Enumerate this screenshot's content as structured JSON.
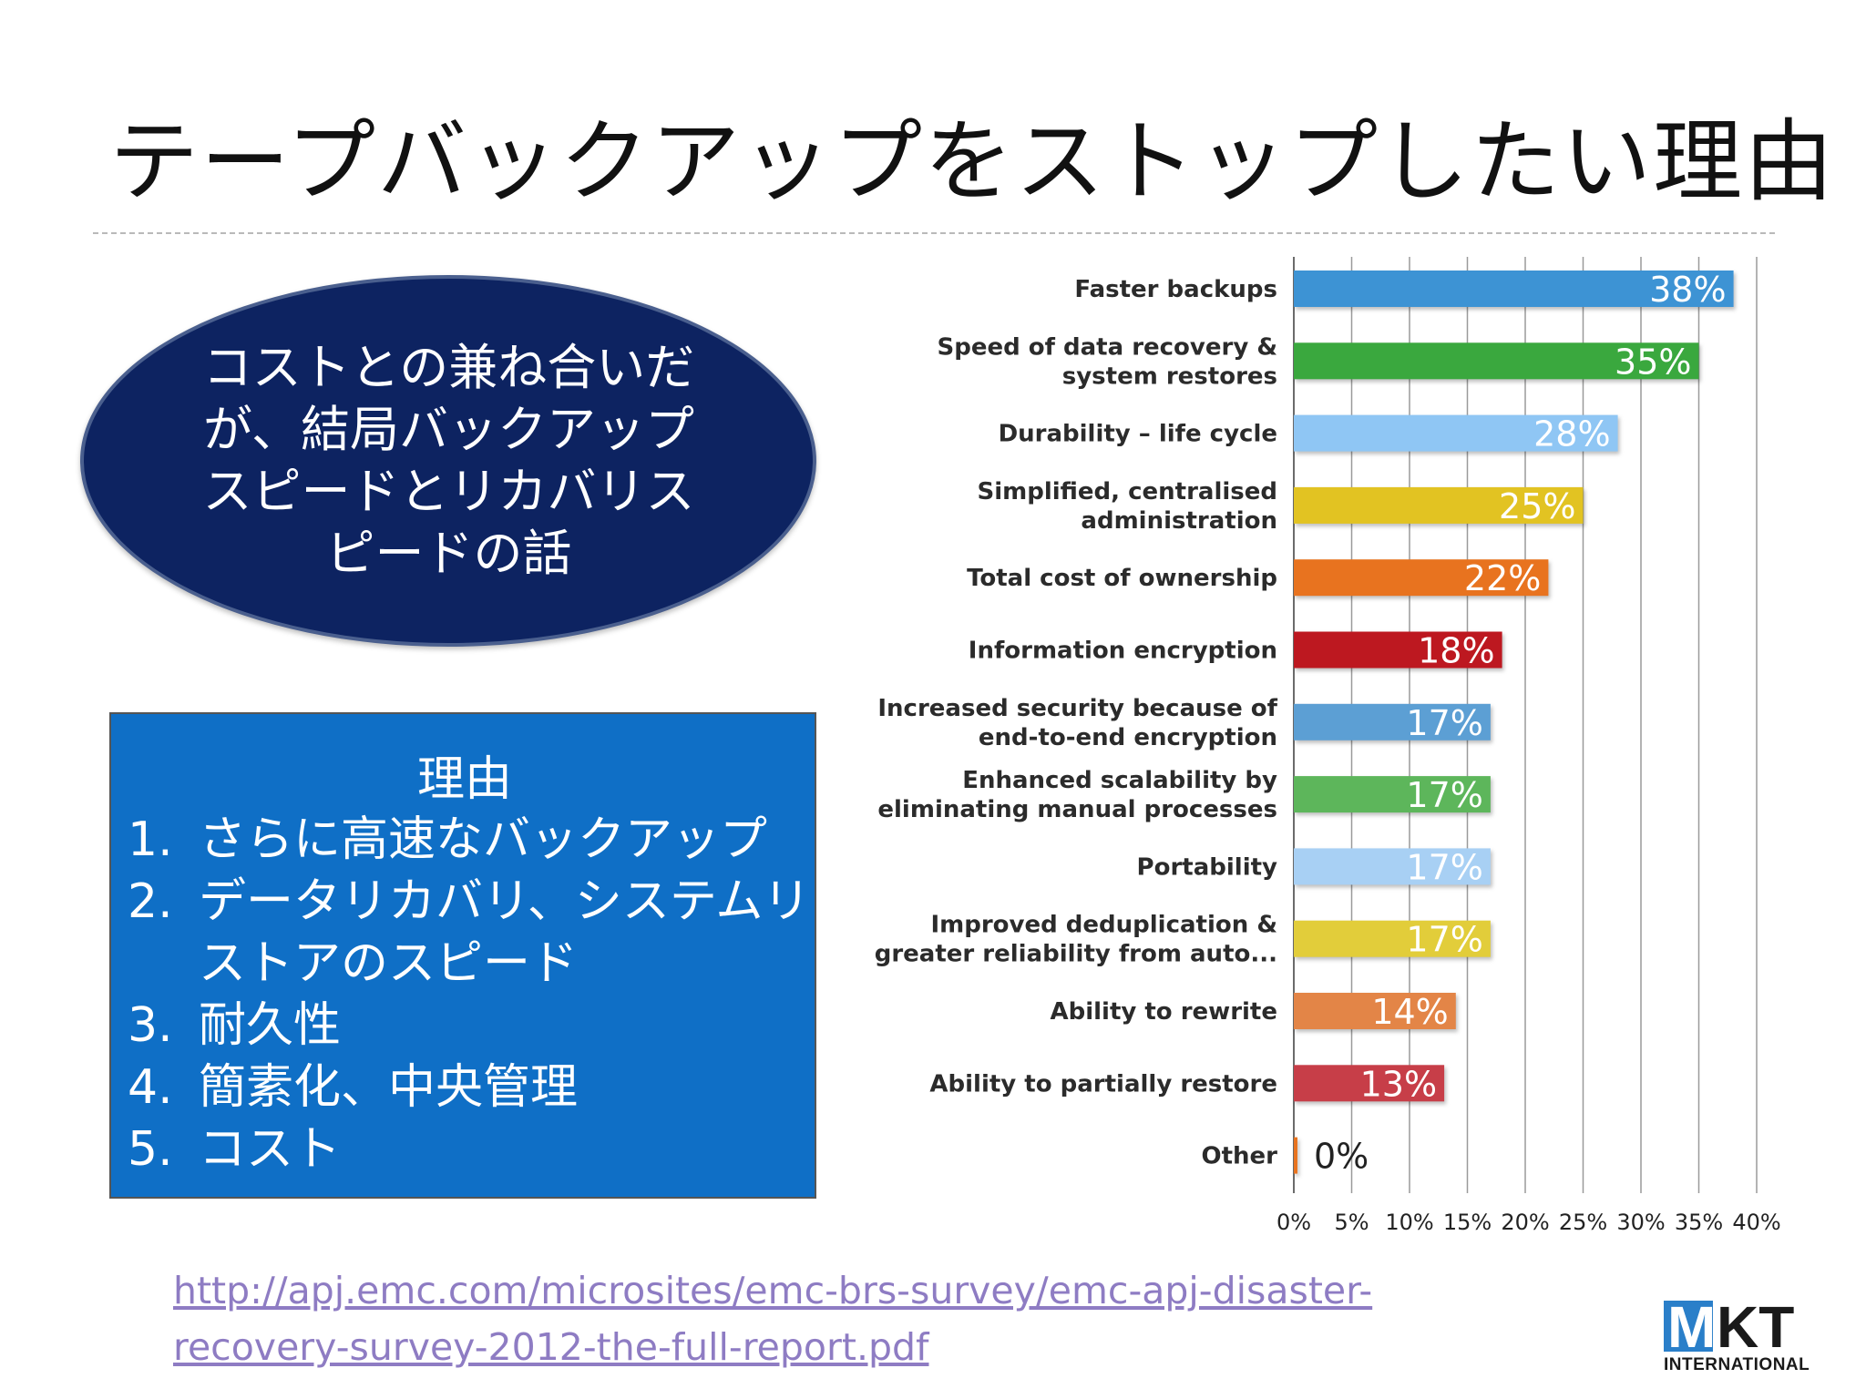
{
  "slide": {
    "title": "テープバックアップをストップしたい理由",
    "callout": "コストとの兼ね合いだが、結局バックアップスピードとリカバリスピードの話",
    "reasons": {
      "heading": "理由",
      "items": [
        {
          "num": "1.",
          "text": "さらに高速なバックアップ"
        },
        {
          "num": "2.",
          "text": "データリカバリ、システムリストアのスピード"
        },
        {
          "num": "3.",
          "text": "耐久性"
        },
        {
          "num": "4.",
          "text": "簡素化、中央管理"
        },
        {
          "num": "5.",
          "text": "コスト"
        }
      ]
    },
    "source_url": "http://apj.emc.com/microsites/emc-brs-survey/emc-apj-disaster-recovery-survey-2012-the-full-report.pdf",
    "logo": {
      "mark": "M",
      "main": "KT",
      "sub": "INTERNATIONAL"
    }
  },
  "chart_data": {
    "type": "bar",
    "orientation": "horizontal",
    "categories": [
      [
        "Faster backups"
      ],
      [
        "Speed of data recovery &",
        "system restores"
      ],
      [
        "Durability – life cycle"
      ],
      [
        "Simplified, centralised",
        "administration"
      ],
      [
        "Total cost of ownership"
      ],
      [
        "Information encryption"
      ],
      [
        "Increased security because of",
        "end-to-end encryption"
      ],
      [
        "Enhanced scalability by",
        "eliminating manual processes"
      ],
      [
        "Portability"
      ],
      [
        "Improved deduplication &",
        "greater reliability from auto..."
      ],
      [
        "Ability to rewrite"
      ],
      [
        "Ability to partially restore"
      ],
      [
        "Other"
      ]
    ],
    "values": [
      38,
      35,
      28,
      25,
      22,
      18,
      17,
      17,
      17,
      17,
      14,
      13,
      0
    ],
    "value_labels": [
      "38%",
      "35%",
      "28%",
      "25%",
      "22%",
      "18%",
      "17%",
      "17%",
      "17%",
      "17%",
      "14%",
      "13%",
      "0%"
    ],
    "colors": [
      "#3d93d4",
      "#3aa83e",
      "#8fc6f4",
      "#e2c322",
      "#e8731f",
      "#bd1820",
      "#5c9fd4",
      "#5db65b",
      "#a8d0f4",
      "#e2cd3a",
      "#e38547",
      "#c73e48",
      "#e8731f"
    ],
    "x_ticks": [
      "0%",
      "5%",
      "10%",
      "15%",
      "20%",
      "25%",
      "30%",
      "35%",
      "40%"
    ],
    "xlim": [
      0,
      40
    ],
    "grid": true,
    "legend": "none"
  }
}
